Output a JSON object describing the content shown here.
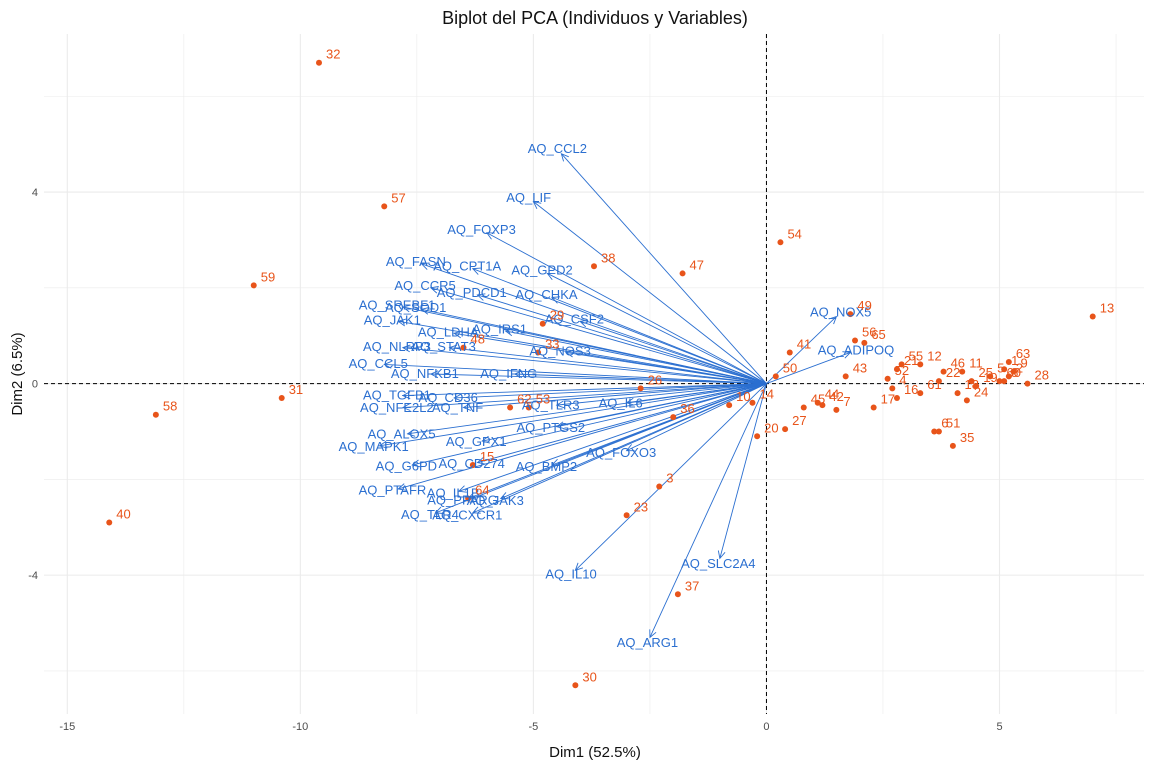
{
  "chart_data": {
    "type": "scatter",
    "subtype": "pca-biplot",
    "title": "Biplot del PCA (Individuos y Variables)",
    "xlabel": "Dim1 (52.5%)",
    "ylabel": "Dim2 (6.5%)",
    "xlim": [
      -15.5,
      8.1
    ],
    "ylim": [
      -6.9,
      7.3
    ],
    "xticks": [
      -15,
      -10,
      -5,
      0,
      5
    ],
    "yticks": [
      -4,
      0,
      4
    ],
    "grid": true,
    "reference_lines": {
      "x": 0,
      "y": 0,
      "style": "dashed"
    },
    "colors": {
      "individuals": "#e8541a",
      "variables": "#2b6fd0",
      "grid": "#ebebeb"
    },
    "individuals": [
      {
        "label": "1",
        "x": 5.1,
        "y": 0.3
      },
      {
        "label": "2",
        "x": 5.2,
        "y": 0.15
      },
      {
        "label": "3",
        "x": -2.3,
        "y": -2.15
      },
      {
        "label": "4",
        "x": 2.7,
        "y": -0.1
      },
      {
        "label": "5",
        "x": 4.8,
        "y": 0.15
      },
      {
        "label": "6",
        "x": 3.6,
        "y": -1.0
      },
      {
        "label": "7",
        "x": 1.5,
        "y": -0.55
      },
      {
        "label": "8",
        "x": 5.1,
        "y": 0.05
      },
      {
        "label": "9",
        "x": 5.3,
        "y": 0.25
      },
      {
        "label": "10",
        "x": -0.8,
        "y": -0.45
      },
      {
        "label": "11",
        "x": 4.2,
        "y": 0.25
      },
      {
        "label": "12",
        "x": 3.3,
        "y": 0.4
      },
      {
        "label": "13",
        "x": 7.0,
        "y": 1.4
      },
      {
        "label": "14",
        "x": -0.3,
        "y": -0.4
      },
      {
        "label": "15",
        "x": -6.3,
        "y": -1.7
      },
      {
        "label": "16",
        "x": 2.8,
        "y": -0.3
      },
      {
        "label": "17",
        "x": 2.3,
        "y": -0.5
      },
      {
        "label": "18",
        "x": 4.1,
        "y": -0.2
      },
      {
        "label": "19",
        "x": 4.5,
        "y": -0.05
      },
      {
        "label": "20",
        "x": -0.2,
        "y": -1.1
      },
      {
        "label": "21",
        "x": 2.8,
        "y": 0.3
      },
      {
        "label": "22",
        "x": 3.7,
        "y": 0.05
      },
      {
        "label": "23",
        "x": -3.0,
        "y": -2.75
      },
      {
        "label": "24",
        "x": 4.3,
        "y": -0.35
      },
      {
        "label": "25",
        "x": 4.4,
        "y": 0.05
      },
      {
        "label": "26",
        "x": -2.7,
        "y": -0.1
      },
      {
        "label": "27",
        "x": 0.4,
        "y": -0.95
      },
      {
        "label": "28",
        "x": 5.6,
        "y": 0.0
      },
      {
        "label": "29",
        "x": -4.8,
        "y": 1.25
      },
      {
        "label": "30",
        "x": -4.1,
        "y": -6.3
      },
      {
        "label": "31",
        "x": -10.4,
        "y": -0.3
      },
      {
        "label": "32",
        "x": -9.6,
        "y": 6.7
      },
      {
        "label": "33",
        "x": -4.9,
        "y": 0.65
      },
      {
        "label": "35",
        "x": 4.0,
        "y": -1.3
      },
      {
        "label": "36",
        "x": -2.0,
        "y": -0.7
      },
      {
        "label": "37",
        "x": -1.9,
        "y": -4.4
      },
      {
        "label": "38",
        "x": -3.7,
        "y": 2.45
      },
      {
        "label": "40",
        "x": -14.1,
        "y": -2.9
      },
      {
        "label": "41",
        "x": 0.5,
        "y": 0.65
      },
      {
        "label": "42",
        "x": 1.2,
        "y": -0.45
      },
      {
        "label": "43",
        "x": 1.7,
        "y": 0.15
      },
      {
        "label": "44",
        "x": 1.1,
        "y": -0.4
      },
      {
        "label": "45",
        "x": 0.8,
        "y": -0.5
      },
      {
        "label": "46",
        "x": 3.8,
        "y": 0.25
      },
      {
        "label": "47",
        "x": -1.8,
        "y": 2.3
      },
      {
        "label": "48",
        "x": -6.5,
        "y": 0.75
      },
      {
        "label": "49",
        "x": 1.8,
        "y": 1.45
      },
      {
        "label": "50",
        "x": 0.2,
        "y": 0.15
      },
      {
        "label": "51",
        "x": 3.7,
        "y": -1.0
      },
      {
        "label": "52",
        "x": 2.6,
        "y": 0.1
      },
      {
        "label": "53",
        "x": -5.1,
        "y": -0.5
      },
      {
        "label": "54",
        "x": 0.3,
        "y": 2.95
      },
      {
        "label": "55",
        "x": 2.9,
        "y": 0.4
      },
      {
        "label": "56",
        "x": 1.9,
        "y": 0.9
      },
      {
        "label": "57",
        "x": -8.2,
        "y": 3.7
      },
      {
        "label": "58",
        "x": -13.1,
        "y": -0.65
      },
      {
        "label": "59",
        "x": -11.0,
        "y": 2.05
      },
      {
        "label": "60",
        "x": 5.0,
        "y": 0.05
      },
      {
        "label": "61",
        "x": 3.3,
        "y": -0.2
      },
      {
        "label": "62",
        "x": -5.5,
        "y": -0.5
      },
      {
        "label": "63",
        "x": 5.2,
        "y": 0.45
      },
      {
        "label": "64",
        "x": -6.4,
        "y": -2.4
      },
      {
        "label": "65",
        "x": 2.1,
        "y": 0.85
      }
    ],
    "variables": [
      {
        "name": "AQ_CCL2",
        "x": -4.4,
        "y": 4.8
      },
      {
        "name": "AQ_LIF",
        "x": -5.0,
        "y": 3.8
      },
      {
        "name": "AQ_FOXP3",
        "x": -6.0,
        "y": 3.15
      },
      {
        "name": "AQ_FASN",
        "x": -7.4,
        "y": 2.5
      },
      {
        "name": "AQ_CPT1A",
        "x": -6.3,
        "y": 2.4
      },
      {
        "name": "AQ_GPD2",
        "x": -4.7,
        "y": 2.3
      },
      {
        "name": "AQ_CCR5",
        "x": -7.2,
        "y": 2.0
      },
      {
        "name": "AQ_PDCD1",
        "x": -6.2,
        "y": 1.85
      },
      {
        "name": "AQ_SREBF1",
        "x": -7.8,
        "y": 1.6
      },
      {
        "name": "AQ_SOD1",
        "x": -7.4,
        "y": 1.55
      },
      {
        "name": "AQ_CHKA",
        "x": -4.6,
        "y": 1.8
      },
      {
        "name": "AQ_JAK1",
        "x": -7.9,
        "y": 1.3
      },
      {
        "name": "AQ_CSF2",
        "x": -4.0,
        "y": 1.3
      },
      {
        "name": "AQ_LDHA",
        "x": -6.7,
        "y": 1.05
      },
      {
        "name": "AQ_IRS1",
        "x": -5.6,
        "y": 1.1
      },
      {
        "name": "AQ_NLRP3",
        "x": -7.8,
        "y": 0.75
      },
      {
        "name": "AQ_STAT3",
        "x": -6.8,
        "y": 0.75
      },
      {
        "name": "AQ_NOS3",
        "x": -4.3,
        "y": 0.65
      },
      {
        "name": "AQ_CCL5",
        "x": -8.2,
        "y": 0.4
      },
      {
        "name": "AQ_NFKB1",
        "x": -7.2,
        "y": 0.2
      },
      {
        "name": "AQ_IFNG",
        "x": -5.4,
        "y": 0.2
      },
      {
        "name": "AQ_TGFB1",
        "x": -7.8,
        "y": -0.25
      },
      {
        "name": "AQ_CD36",
        "x": -6.7,
        "y": -0.3
      },
      {
        "name": "AQ_TLR3",
        "x": -4.5,
        "y": -0.45
      },
      {
        "name": "AQ_IL6",
        "x": -3.0,
        "y": -0.4
      },
      {
        "name": "AQ_NFE2L2",
        "x": -7.8,
        "y": -0.5
      },
      {
        "name": "AQ_TNF",
        "x": -6.5,
        "y": -0.5
      },
      {
        "name": "AQ_PTGS2",
        "x": -4.5,
        "y": -0.9
      },
      {
        "name": "AQ_ALOX5",
        "x": -7.7,
        "y": -1.05
      },
      {
        "name": "AQ_GPX1",
        "x": -6.1,
        "y": -1.2
      },
      {
        "name": "AQ_MAPK1",
        "x": -8.3,
        "y": -1.3
      },
      {
        "name": "AQ_FOXO3",
        "x": -3.0,
        "y": -1.4
      },
      {
        "name": "AQ_G6PD",
        "x": -7.6,
        "y": -1.7
      },
      {
        "name": "AQ_CD274",
        "x": -6.2,
        "y": -1.65
      },
      {
        "name": "AQ_BMP2",
        "x": -4.6,
        "y": -1.7
      },
      {
        "name": "AQ_PTAFR",
        "x": -7.9,
        "y": -2.2
      },
      {
        "name": "AQ_IL1B",
        "x": -6.6,
        "y": -2.25
      },
      {
        "name": "AQ_PPARG",
        "x": -6.4,
        "y": -2.4
      },
      {
        "name": "AQ_TLR4",
        "x": -7.1,
        "y": -2.7
      },
      {
        "name": "AQ_JAK3",
        "x": -5.7,
        "y": -2.4
      },
      {
        "name": "AQ_CXCR1",
        "x": -6.3,
        "y": -2.7
      },
      {
        "name": "AQ_IL10",
        "x": -4.1,
        "y": -3.9
      },
      {
        "name": "AQ_SLC2A4",
        "x": -1.0,
        "y": -3.65
      },
      {
        "name": "AQ_ARG1",
        "x": -2.5,
        "y": -5.3
      },
      {
        "name": "AQ_NOX5",
        "x": 1.5,
        "y": 1.4
      },
      {
        "name": "AQ_ADIPOQ",
        "x": 1.8,
        "y": 0.65
      }
    ]
  }
}
